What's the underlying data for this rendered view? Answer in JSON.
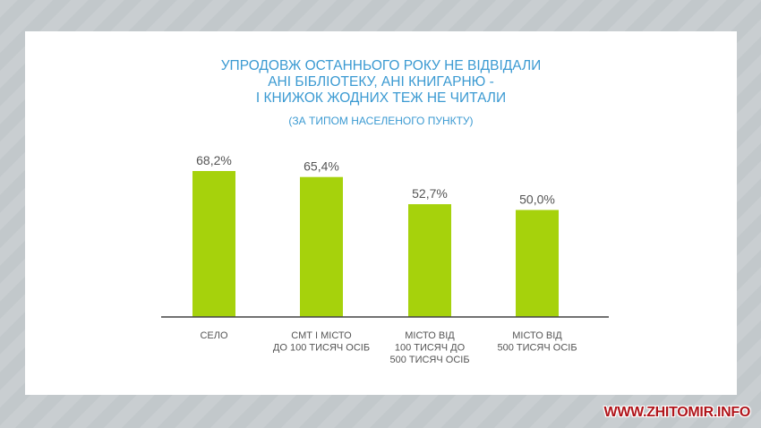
{
  "chart_data": {
    "type": "bar",
    "title": "УПРОДОВЖ ОСТАННЬОГО РОКУ НЕ ВІДВІДАЛИ АНІ БІБЛІОТЕКУ, АНІ КНИГАРНЮ - І КНИЖОК ЖОДНИХ ТЕЖ НЕ ЧИТАЛИ",
    "title_lines": [
      "УПРОДОВЖ ОСТАННЬОГО РОКУ НЕ ВІДВІДАЛИ",
      "АНІ БІБЛІОТЕКУ, АНІ КНИГАРНЮ -",
      "І КНИЖОК ЖОДНИХ ТЕЖ НЕ ЧИТАЛИ"
    ],
    "subtitle": "(ЗА ТИПОМ НАСЕЛЕНОГО ПУНКТУ)",
    "categories": [
      [
        "СЕЛО"
      ],
      [
        "СМТ І МІСТО",
        "ДО 100 ТИСЯЧ ОСІБ"
      ],
      [
        "МІСТО ВІД",
        "100 ТИСЯЧ ДО",
        "500 ТИСЯЧ ОСІБ"
      ],
      [
        "МІСТО ВІД",
        "500 ТИСЯЧ ОСІБ"
      ]
    ],
    "values": [
      68.2,
      65.4,
      52.7,
      50.0
    ],
    "value_labels": [
      "68,2%",
      "65,4%",
      "52,7%",
      "50,0%"
    ],
    "ylim": [
      0,
      100
    ],
    "grid": false,
    "bar_color": "#a6d20c"
  },
  "watermark": "WWW.ZHITOMIR.INFO"
}
